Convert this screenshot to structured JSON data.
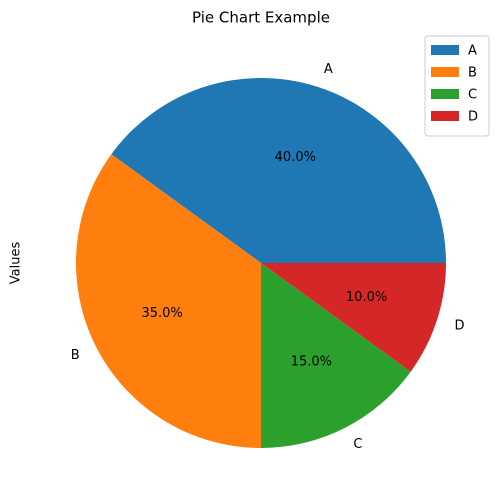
{
  "chart_data": {
    "type": "pie",
    "title": "Pie Chart Example",
    "ylabel": "Values",
    "categories": [
      "A",
      "B",
      "C",
      "D"
    ],
    "values": [
      40,
      35,
      15,
      10
    ],
    "value_labels": [
      "40.0%",
      "35.0%",
      "15.0%",
      "10.0%"
    ],
    "colors": [
      "#1f77b4",
      "#ff7f0e",
      "#2ca02c",
      "#d62728"
    ],
    "legend": "upper right"
  }
}
